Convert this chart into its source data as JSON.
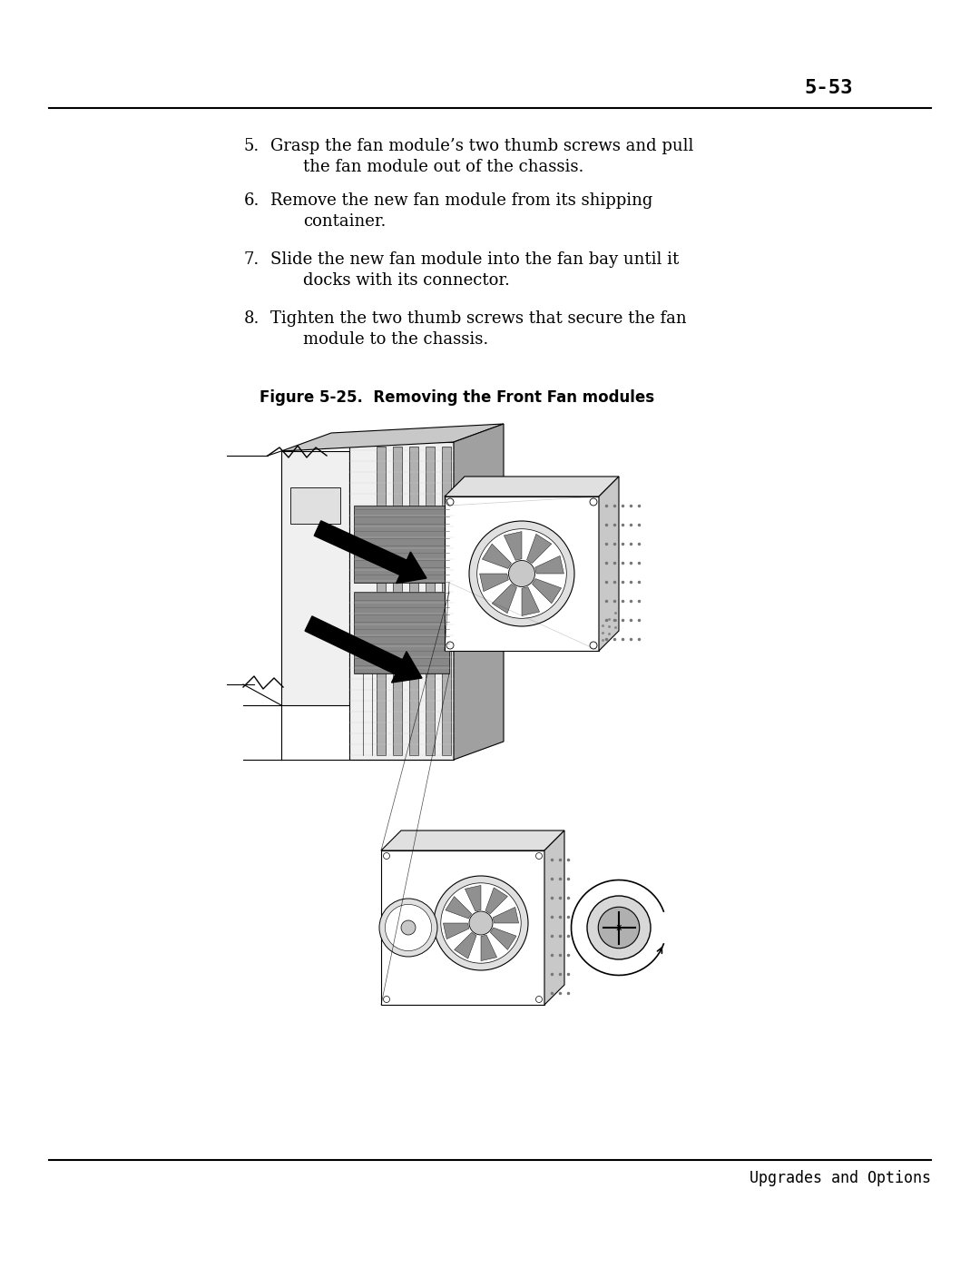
{
  "page_number": "5-53",
  "footer_text": "Upgrades and Options",
  "figure_caption": "Figure 5-25.  Removing the Front Fan modules",
  "steps": [
    {
      "num": "5.",
      "text": "Grasp the fan module’s two thumb screws and pull\n    the fan module out of the chassis."
    },
    {
      "num": "6.",
      "text": "Remove the new fan module from its shipping\n    container."
    },
    {
      "num": "7.",
      "text": "Slide the new fan module into the fan bay until it\n    docks with its connector."
    },
    {
      "num": "8.",
      "text": "Tighten the two thumb screws that secure the fan\n    module to the chassis."
    }
  ],
  "bg_color": "#ffffff",
  "text_color": "#000000",
  "line_color": "#1a1a1a"
}
